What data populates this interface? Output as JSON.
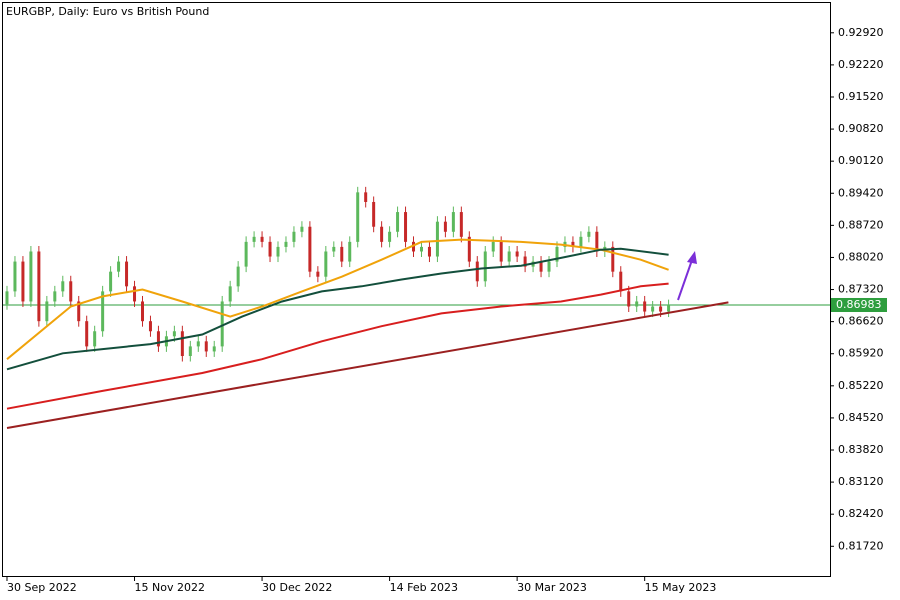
{
  "chart_data": {
    "type": "candlestick",
    "title": "EURGBP, Daily:  Euro vs British Pound",
    "xlim": [
      -1,
      206.5
    ],
    "ylim": [
      0.8105,
      0.9357
    ],
    "xticks": [
      {
        "value": 0,
        "label": "30 Sep 2022"
      },
      {
        "value": 32,
        "label": "15 Nov 2022"
      },
      {
        "value": 64,
        "label": "30 Dec 2022"
      },
      {
        "value": 96,
        "label": "14 Feb 2023"
      },
      {
        "value": 128,
        "label": "30 Mar 2023"
      },
      {
        "value": 160,
        "label": "15 May 2023"
      }
    ],
    "yticks": [
      {
        "value": 0.9292,
        "label": "0.92920"
      },
      {
        "value": 0.9222,
        "label": "0.92220"
      },
      {
        "value": 0.9152,
        "label": "0.91520"
      },
      {
        "value": 0.9082,
        "label": "0.90820"
      },
      {
        "value": 0.9012,
        "label": "0.90120"
      },
      {
        "value": 0.8942,
        "label": "0.89420"
      },
      {
        "value": 0.8872,
        "label": "0.88720"
      },
      {
        "value": 0.8802,
        "label": "0.88020"
      },
      {
        "value": 0.8732,
        "label": "0.87320"
      },
      {
        "value": 0.8662,
        "label": "0.86620"
      },
      {
        "value": 0.8592,
        "label": "0.85920"
      },
      {
        "value": 0.8522,
        "label": "0.85220"
      },
      {
        "value": 0.8452,
        "label": "0.84520"
      },
      {
        "value": 0.8382,
        "label": "0.83820"
      },
      {
        "value": 0.8312,
        "label": "0.83120"
      },
      {
        "value": 0.8242,
        "label": "0.82420"
      },
      {
        "value": 0.8172,
        "label": "0.81720"
      }
    ],
    "candles": {
      "up_color": "#5cb85c",
      "down_color": "#c62828",
      "x": [
        0,
        2,
        4,
        6,
        8,
        10,
        12,
        14,
        16,
        18,
        20,
        22,
        24,
        26,
        28,
        30,
        32,
        34,
        36,
        38,
        40,
        42,
        44,
        46,
        48,
        50,
        52,
        54,
        56,
        58,
        60,
        62,
        64,
        66,
        68,
        70,
        72,
        74,
        76,
        78,
        80,
        82,
        84,
        86,
        88,
        90,
        92,
        94,
        96,
        98,
        100,
        102,
        104,
        106,
        108,
        110,
        112,
        114,
        116,
        118,
        120,
        122,
        124,
        126,
        128,
        130,
        132,
        134,
        136,
        138,
        140,
        142,
        144,
        146,
        148,
        150,
        152,
        154,
        156,
        158,
        160,
        162,
        164,
        166
      ],
      "open": [
        0.87,
        0.8728,
        0.8793,
        0.8706,
        0.8815,
        0.8663,
        0.8706,
        0.8728,
        0.875,
        0.8706,
        0.8663,
        0.8608,
        0.8641,
        0.8728,
        0.8771,
        0.8793,
        0.8739,
        0.8706,
        0.8663,
        0.8641,
        0.8608,
        0.863,
        0.8641,
        0.8587,
        0.8608,
        0.8619,
        0.8597,
        0.8608,
        0.8706,
        0.8739,
        0.8782,
        0.8836,
        0.8847,
        0.8836,
        0.8804,
        0.8825,
        0.8836,
        0.8858,
        0.8869,
        0.8771,
        0.876,
        0.8815,
        0.8825,
        0.8793,
        0.8836,
        0.8944,
        0.8923,
        0.8869,
        0.8836,
        0.8858,
        0.8901,
        0.8836,
        0.8815,
        0.8825,
        0.8804,
        0.888,
        0.8858,
        0.8901,
        0.8847,
        0.8793,
        0.875,
        0.8815,
        0.8836,
        0.8793,
        0.8815,
        0.8804,
        0.8782,
        0.8793,
        0.8771,
        0.8793,
        0.8825,
        0.8836,
        0.8825,
        0.8847,
        0.8858,
        0.8815,
        0.8825,
        0.8771,
        0.8728,
        0.8695,
        0.8706,
        0.8684,
        0.8695,
        0.8684
      ],
      "high": [
        0.874,
        0.8805,
        0.8805,
        0.8827,
        0.8827,
        0.8718,
        0.874,
        0.8762,
        0.8762,
        0.8718,
        0.8675,
        0.8653,
        0.874,
        0.8783,
        0.8805,
        0.8805,
        0.8751,
        0.8718,
        0.8675,
        0.8653,
        0.8642,
        0.8653,
        0.8653,
        0.862,
        0.8631,
        0.8631,
        0.862,
        0.8718,
        0.8751,
        0.8794,
        0.8848,
        0.8859,
        0.8859,
        0.8848,
        0.8837,
        0.8848,
        0.887,
        0.8881,
        0.8881,
        0.8783,
        0.8827,
        0.8837,
        0.8837,
        0.8848,
        0.8956,
        0.8956,
        0.8935,
        0.8881,
        0.887,
        0.8913,
        0.8913,
        0.8848,
        0.8837,
        0.8837,
        0.8892,
        0.8892,
        0.8913,
        0.8913,
        0.8859,
        0.8805,
        0.8827,
        0.8848,
        0.8848,
        0.8827,
        0.8827,
        0.8816,
        0.8805,
        0.8805,
        0.8805,
        0.8837,
        0.8848,
        0.8848,
        0.8859,
        0.887,
        0.887,
        0.8837,
        0.8837,
        0.8783,
        0.874,
        0.8718,
        0.8718,
        0.8707,
        0.8707,
        0.871
      ],
      "low": [
        0.8688,
        0.8716,
        0.8694,
        0.8694,
        0.8651,
        0.8651,
        0.8694,
        0.8716,
        0.8694,
        0.8651,
        0.8596,
        0.8596,
        0.8629,
        0.8716,
        0.8759,
        0.8727,
        0.8694,
        0.8651,
        0.8629,
        0.8596,
        0.8596,
        0.8618,
        0.8575,
        0.8575,
        0.8596,
        0.8585,
        0.8585,
        0.8596,
        0.8694,
        0.8727,
        0.877,
        0.8824,
        0.8824,
        0.8792,
        0.8792,
        0.8813,
        0.8824,
        0.8846,
        0.8759,
        0.8748,
        0.8748,
        0.8803,
        0.8781,
        0.8781,
        0.8824,
        0.8911,
        0.8857,
        0.8824,
        0.8824,
        0.8846,
        0.8824,
        0.8803,
        0.8803,
        0.8792,
        0.8792,
        0.8846,
        0.8846,
        0.8835,
        0.8781,
        0.8738,
        0.8738,
        0.8803,
        0.8781,
        0.8781,
        0.8792,
        0.877,
        0.877,
        0.8759,
        0.8759,
        0.8781,
        0.8813,
        0.8813,
        0.8813,
        0.8835,
        0.8803,
        0.8803,
        0.8759,
        0.8716,
        0.8683,
        0.8683,
        0.8672,
        0.8672,
        0.8672,
        0.8672
      ],
      "close": [
        0.8728,
        0.8793,
        0.8706,
        0.8815,
        0.8663,
        0.8706,
        0.8728,
        0.875,
        0.8706,
        0.8663,
        0.8608,
        0.8641,
        0.8728,
        0.8771,
        0.8793,
        0.8739,
        0.8706,
        0.8663,
        0.8641,
        0.8608,
        0.863,
        0.8641,
        0.8587,
        0.8608,
        0.8619,
        0.8597,
        0.8608,
        0.8706,
        0.8739,
        0.8782,
        0.8836,
        0.8847,
        0.8836,
        0.8804,
        0.8825,
        0.8836,
        0.8858,
        0.8869,
        0.8771,
        0.876,
        0.8815,
        0.8825,
        0.8793,
        0.8836,
        0.8944,
        0.8923,
        0.8869,
        0.8836,
        0.8858,
        0.8901,
        0.8836,
        0.8815,
        0.8825,
        0.8804,
        0.888,
        0.8858,
        0.8901,
        0.8847,
        0.8793,
        0.875,
        0.8815,
        0.8836,
        0.8793,
        0.8815,
        0.8804,
        0.8782,
        0.8793,
        0.8771,
        0.8793,
        0.8825,
        0.8836,
        0.8825,
        0.8847,
        0.8858,
        0.8815,
        0.8825,
        0.8771,
        0.8728,
        0.8695,
        0.8706,
        0.8684,
        0.8695,
        0.8684,
        0.86983
      ]
    },
    "series": [
      {
        "color": "#f0a30a",
        "x": [
          0,
          16,
          24,
          34,
          44,
          56,
          64,
          74,
          84,
          94,
          104,
          114,
          129,
          139,
          149,
          159,
          166
        ],
        "values": [
          0.858,
          0.8695,
          0.8717,
          0.8732,
          0.8706,
          0.8673,
          0.8695,
          0.8728,
          0.876,
          0.8797,
          0.8836,
          0.8841,
          0.8836,
          0.883,
          0.8819,
          0.8797,
          0.8775
        ]
      },
      {
        "color": "#134f3c",
        "x": [
          0,
          14,
          24,
          36,
          49,
          59,
          69,
          79,
          89,
          99,
          109,
          119,
          129,
          139,
          149,
          154,
          166
        ],
        "values": [
          0.8558,
          0.8593,
          0.8602,
          0.8613,
          0.8634,
          0.8673,
          0.8706,
          0.8728,
          0.8739,
          0.8754,
          0.8767,
          0.8778,
          0.8784,
          0.8801,
          0.8819,
          0.8821,
          0.8808
        ]
      },
      {
        "color": "#d81e1e",
        "x": [
          0,
          24,
          49,
          64,
          79,
          94,
          109,
          124,
          139,
          149,
          159,
          166
        ],
        "values": [
          0.8472,
          0.8511,
          0.855,
          0.858,
          0.8619,
          0.8652,
          0.868,
          0.8695,
          0.8706,
          0.8721,
          0.8739,
          0.8745
        ]
      },
      {
        "color": "#9b2020",
        "x": [
          0,
          181
        ],
        "values": [
          0.843,
          0.8704
        ]
      }
    ],
    "current_price": 0.86983,
    "current_price_color": "#2e9e3e"
  }
}
